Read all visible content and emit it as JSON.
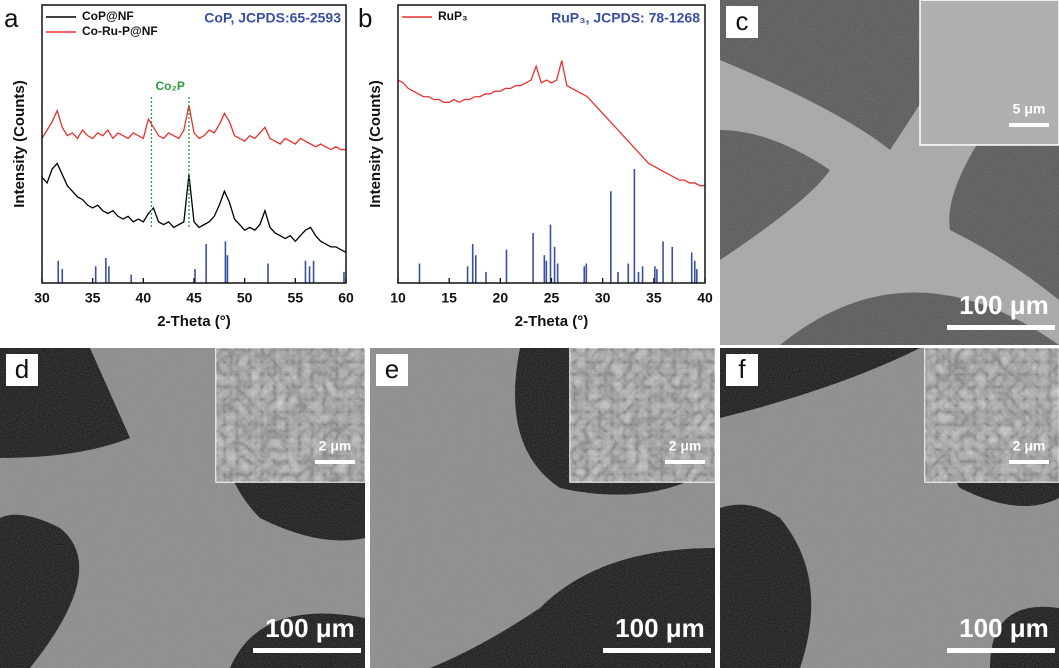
{
  "chart_data": [
    {
      "type": "line",
      "panel": "a",
      "xlabel": "2-Theta (°)",
      "ylabel": "Intensity (Counts)",
      "x": [
        30,
        30.5,
        31,
        31.5,
        32,
        32.5,
        33,
        33.5,
        34,
        34.5,
        35,
        35.5,
        36,
        36.5,
        37,
        37.5,
        38,
        38.5,
        39,
        39.5,
        40,
        40.5,
        41,
        41.5,
        42,
        42.5,
        43,
        43.5,
        44,
        44.5,
        45,
        45.5,
        46,
        46.5,
        47,
        47.5,
        48,
        48.5,
        49,
        49.5,
        50,
        50.5,
        51,
        51.5,
        52,
        52.5,
        53,
        53.5,
        54,
        54.5,
        55,
        55.5,
        56,
        56.5,
        57,
        57.5,
        58,
        58.5,
        59,
        59.5,
        60
      ],
      "series": [
        {
          "name": "CoP@NF",
          "color": "#000000",
          "values": [
            38,
            36,
            41,
            43,
            39,
            35,
            33,
            31,
            30,
            28,
            27,
            28,
            26,
            25,
            26,
            24,
            23,
            24,
            22,
            23,
            22,
            25,
            27,
            22,
            21,
            22,
            20,
            21,
            22,
            39,
            22,
            20,
            21,
            22,
            24,
            28,
            33,
            29,
            23,
            21,
            19,
            20,
            19,
            21,
            26,
            20,
            18,
            17,
            16,
            17,
            15,
            17,
            19,
            20,
            17,
            15,
            14,
            13,
            13,
            12,
            11
          ]
        },
        {
          "name": "Co-Ru-P@NF",
          "color": "#e8312f",
          "values": [
            52,
            55,
            58,
            62,
            56,
            53,
            54,
            52,
            55,
            53,
            52,
            54,
            53,
            55,
            52,
            54,
            53,
            52,
            54,
            53,
            52,
            59,
            56,
            53,
            52,
            54,
            53,
            52,
            55,
            64,
            54,
            52,
            53,
            55,
            54,
            57,
            61,
            58,
            53,
            52,
            51,
            53,
            52,
            54,
            56,
            52,
            51,
            50,
            52,
            51,
            50,
            52,
            51,
            50,
            49,
            50,
            49,
            48,
            49,
            48,
            48
          ]
        }
      ],
      "reference": {
        "name": "CoP, JCPDS:65-2593",
        "color": "#3a4fa0",
        "positions": [
          31.6,
          32.0,
          35.3,
          36.3,
          36.6,
          38.8,
          45.1,
          46.2,
          48.1,
          48.3,
          52.3,
          56.0,
          56.4,
          56.8,
          59.8
        ],
        "heights": [
          8,
          5,
          6,
          9,
          6,
          3,
          5,
          14,
          15,
          10,
          7,
          8,
          6,
          8,
          4
        ]
      },
      "peak_annotation": {
        "text": "Co₂P",
        "color": "#2e9a3c",
        "positions": [
          40.8,
          44.5
        ]
      },
      "xlim": [
        30,
        60
      ],
      "xticks": [
        30,
        35,
        40,
        45,
        50,
        55,
        60
      ],
      "ylim": [
        0,
        100
      ]
    },
    {
      "type": "line",
      "panel": "b",
      "xlabel": "2-Theta (°)",
      "ylabel": "Intensity (Counts)",
      "x": [
        10,
        10.5,
        11,
        11.5,
        12,
        12.5,
        13,
        13.5,
        14,
        14.5,
        15,
        15.5,
        16,
        16.5,
        17,
        17.5,
        18,
        18.5,
        19,
        19.5,
        20,
        20.5,
        21,
        21.5,
        22,
        22.5,
        23,
        23.5,
        24,
        24.5,
        25,
        25.5,
        26,
        26.5,
        27,
        27.5,
        28,
        28.5,
        29,
        29.5,
        30,
        30.5,
        31,
        31.5,
        32,
        32.5,
        33,
        33.5,
        34,
        34.5,
        35,
        35.5,
        36,
        36.5,
        37,
        37.5,
        38,
        38.5,
        39,
        39.5,
        40
      ],
      "series": [
        {
          "name": "RuP₃",
          "color": "#e8312f",
          "values": [
            73,
            72,
            70,
            69,
            68,
            67,
            67,
            66,
            66,
            65,
            65,
            66,
            65,
            66,
            66,
            67,
            67,
            68,
            68,
            69,
            69,
            70,
            70,
            71,
            71,
            72,
            73,
            78,
            72,
            73,
            72,
            73,
            80,
            71,
            70,
            69,
            68,
            67,
            65,
            63,
            61,
            59,
            57,
            55,
            53,
            51,
            49,
            47,
            45,
            43,
            42,
            41,
            40,
            39,
            38,
            37,
            37,
            36,
            36,
            35,
            35
          ]
        }
      ],
      "reference": {
        "name": "RuP₃, JCPDS: 78-1268",
        "color": "#3a4fa0",
        "positions": [
          12.1,
          16.8,
          17.3,
          17.6,
          18.6,
          20.6,
          23.2,
          24.3,
          24.5,
          24.9,
          25.3,
          25.6,
          28.2,
          28.4,
          30.8,
          31.5,
          32.5,
          33.1,
          33.5,
          33.9,
          35.1,
          35.3,
          35.9,
          36.8,
          38.7,
          39.0,
          39.2
        ],
        "heights": [
          7,
          6,
          14,
          10,
          4,
          12,
          18,
          10,
          8,
          21,
          13,
          7,
          6,
          7,
          33,
          4,
          7,
          41,
          4,
          6,
          6,
          5,
          15,
          13,
          11,
          8,
          5
        ]
      },
      "xlim": [
        10,
        40
      ],
      "xticks": [
        10,
        15,
        20,
        25,
        30,
        35,
        40
      ],
      "ylim": [
        0,
        100
      ]
    }
  ],
  "images": [
    {
      "label": "c",
      "scale_bar": "100 μm",
      "inset_scale_bar": "5 μm"
    },
    {
      "label": "d",
      "scale_bar": "100 μm",
      "inset_scale_bar": "2 μm"
    },
    {
      "label": "e",
      "scale_bar": "100 μm",
      "inset_scale_bar": "2 μm"
    },
    {
      "label": "f",
      "scale_bar": "100 μm",
      "inset_scale_bar": "2 μm"
    }
  ]
}
